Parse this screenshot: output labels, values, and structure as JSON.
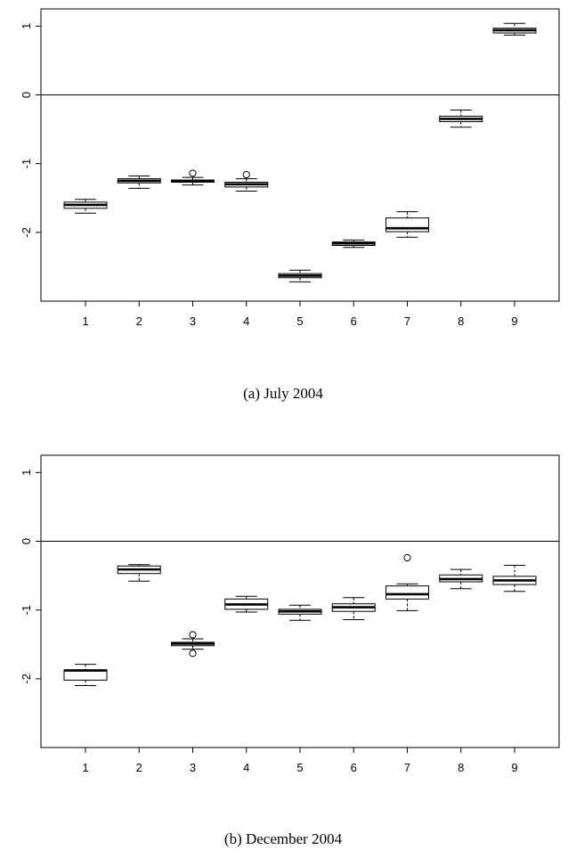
{
  "chart_data": [
    {
      "type": "box",
      "caption": "(a) July 2004",
      "categories": [
        "1",
        "2",
        "3",
        "4",
        "5",
        "6",
        "7",
        "8",
        "9"
      ],
      "ylim": [
        -3,
        1.25
      ],
      "yticks": [
        1,
        0,
        -1,
        -2
      ],
      "ytick_labels": [
        "1",
        "0",
        "-1",
        "-2"
      ],
      "reference_line": 0,
      "boxes": [
        {
          "whisker_low": -1.72,
          "q1": -1.65,
          "median": -1.6,
          "q3": -1.56,
          "whisker_high": -1.52,
          "outliers": []
        },
        {
          "whisker_low": -1.36,
          "q1": -1.28,
          "median": -1.25,
          "q3": -1.22,
          "whisker_high": -1.18,
          "outliers": []
        },
        {
          "whisker_low": -1.31,
          "q1": -1.27,
          "median": -1.25,
          "q3": -1.24,
          "whisker_high": -1.2,
          "outliers": [
            -1.14
          ]
        },
        {
          "whisker_low": -1.4,
          "q1": -1.34,
          "median": -1.3,
          "q3": -1.27,
          "whisker_high": -1.22,
          "outliers": [
            -1.16
          ]
        },
        {
          "whisker_low": -2.72,
          "q1": -2.66,
          "median": -2.63,
          "q3": -2.6,
          "whisker_high": -2.55,
          "outliers": []
        },
        {
          "whisker_low": -2.22,
          "q1": -2.19,
          "median": -2.16,
          "q3": -2.14,
          "whisker_high": -2.11,
          "outliers": []
        },
        {
          "whisker_low": -2.07,
          "q1": -1.99,
          "median": -1.94,
          "q3": -1.79,
          "whisker_high": -1.7,
          "outliers": []
        },
        {
          "whisker_low": -0.47,
          "q1": -0.39,
          "median": -0.35,
          "q3": -0.31,
          "whisker_high": -0.22,
          "outliers": []
        },
        {
          "whisker_low": 0.87,
          "q1": 0.9,
          "median": 0.94,
          "q3": 0.97,
          "whisker_high": 1.04,
          "outliers": []
        }
      ]
    },
    {
      "type": "box",
      "caption": "(b) December 2004",
      "categories": [
        "1",
        "2",
        "3",
        "4",
        "5",
        "6",
        "7",
        "8",
        "9"
      ],
      "ylim": [
        -3,
        1.25
      ],
      "yticks": [
        1,
        0,
        -1,
        -2
      ],
      "ytick_labels": [
        "1",
        "0",
        "-1",
        "-2"
      ],
      "reference_line": 0,
      "boxes": [
        {
          "whisker_low": -2.1,
          "q1": -2.02,
          "median": -1.88,
          "q3": -1.87,
          "whisker_high": -1.79,
          "outliers": []
        },
        {
          "whisker_low": -0.58,
          "q1": -0.47,
          "median": -0.41,
          "q3": -0.36,
          "whisker_high": -0.34,
          "outliers": []
        },
        {
          "whisker_low": -1.57,
          "q1": -1.52,
          "median": -1.49,
          "q3": -1.47,
          "whisker_high": -1.42,
          "outliers": [
            -1.63,
            -1.36
          ]
        },
        {
          "whisker_low": -1.03,
          "q1": -0.99,
          "median": -0.92,
          "q3": -0.84,
          "whisker_high": -0.8,
          "outliers": []
        },
        {
          "whisker_low": -1.15,
          "q1": -1.06,
          "median": -1.02,
          "q3": -0.99,
          "whisker_high": -0.93,
          "outliers": []
        },
        {
          "whisker_low": -1.14,
          "q1": -1.02,
          "median": -0.96,
          "q3": -0.91,
          "whisker_high": -0.82,
          "outliers": []
        },
        {
          "whisker_low": -1.01,
          "q1": -0.84,
          "median": -0.77,
          "q3": -0.65,
          "whisker_high": -0.62,
          "outliers": [
            -0.24
          ]
        },
        {
          "whisker_low": -0.69,
          "q1": -0.59,
          "median": -0.55,
          "q3": -0.49,
          "whisker_high": -0.41,
          "outliers": []
        },
        {
          "whisker_low": -0.73,
          "q1": -0.63,
          "median": -0.57,
          "q3": -0.51,
          "whisker_high": -0.35,
          "outliers": []
        }
      ]
    }
  ]
}
